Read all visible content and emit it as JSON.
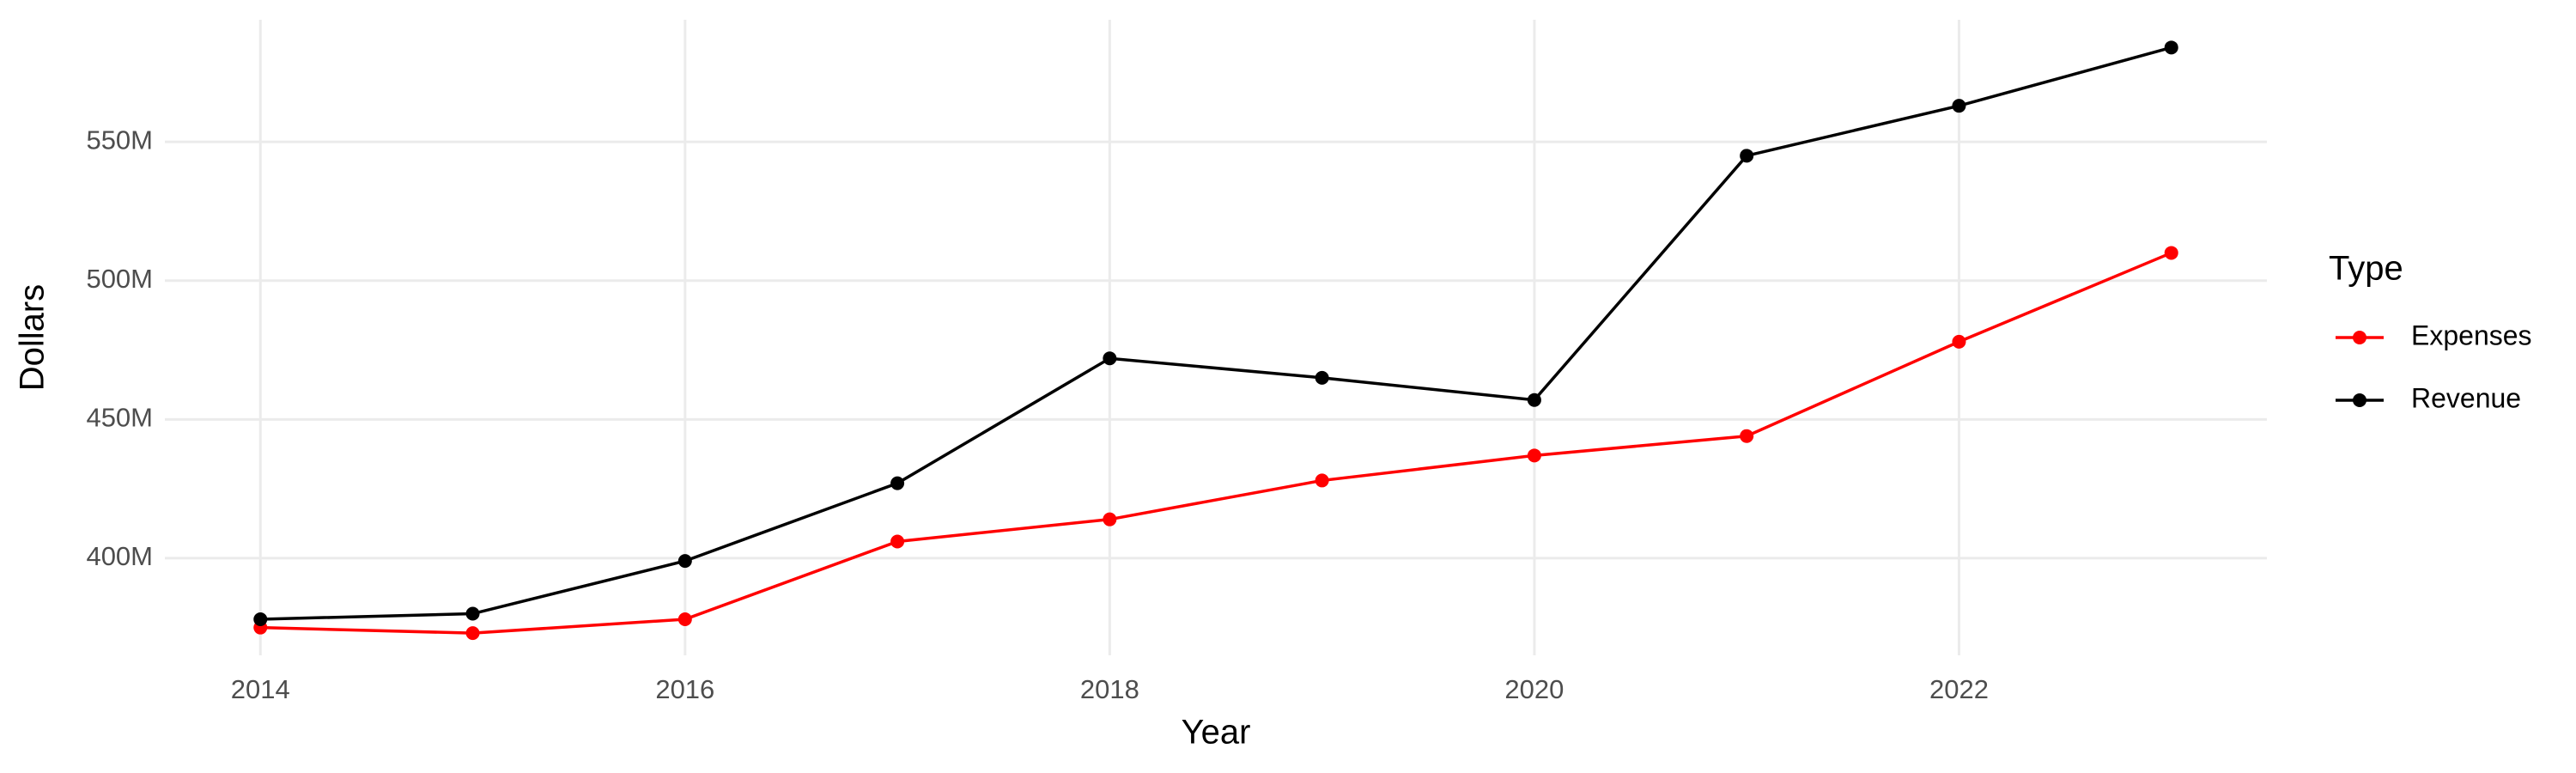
{
  "chart_data": {
    "type": "line",
    "x_label": "Year",
    "y_label": "Dollars",
    "legend_title": "Type",
    "x": [
      2014,
      2015,
      2016,
      2017,
      2018,
      2019,
      2020,
      2021,
      2022,
      2023
    ],
    "series": [
      {
        "name": "Expenses",
        "color": "#ff0000",
        "values": [
          375000000,
          373000000,
          378000000,
          406000000,
          414000000,
          428000000,
          437000000,
          444000000,
          478000000,
          510000000
        ]
      },
      {
        "name": "Revenue",
        "color": "#000000",
        "values": [
          378000000,
          380000000,
          399000000,
          427000000,
          472000000,
          465000000,
          457000000,
          545000000,
          563000000,
          584000000
        ]
      }
    ],
    "xlim": [
      2013.55,
      2023.45
    ],
    "xticks": [
      2014,
      2016,
      2018,
      2020,
      2022
    ],
    "ylim": [
      365000000,
      594000000
    ],
    "yticks": [
      {
        "value": 400000000,
        "label": "400M"
      },
      {
        "value": 450000000,
        "label": "450M"
      },
      {
        "value": 500000000,
        "label": "500M"
      },
      {
        "value": 550000000,
        "label": "550M"
      }
    ],
    "grid": true,
    "legend": "right"
  }
}
